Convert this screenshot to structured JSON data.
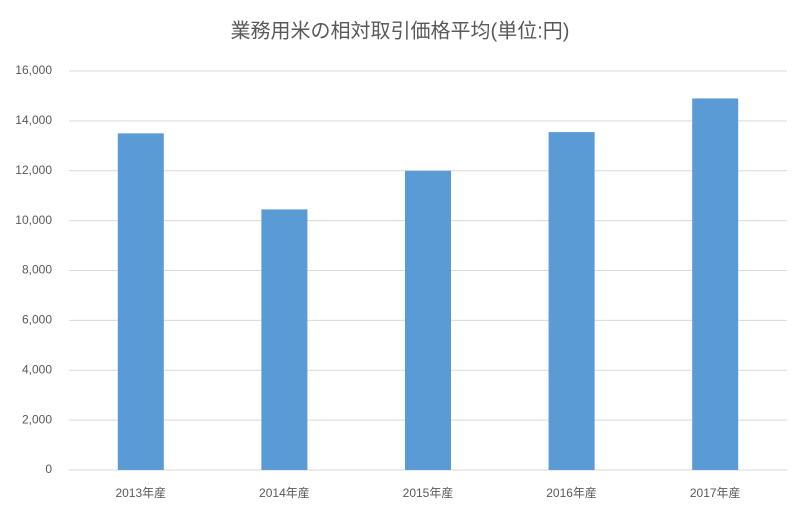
{
  "chart_data": {
    "type": "bar",
    "title": "業務用米の相対取引価格平均(単位:円)",
    "categories": [
      "2013年産",
      "2014年産",
      "2015年産",
      "2016年産",
      "2017年産"
    ],
    "values": [
      13500,
      10450,
      12000,
      13550,
      14900
    ],
    "color": "#5b9bd5",
    "ylim": [
      0,
      16000
    ],
    "yticks": [
      0,
      {
        "value": 2000,
        "label": "2,000"
      },
      {
        "value": 4000,
        "label": "4,000"
      },
      {
        "value": 6000,
        "label": "6,000"
      },
      {
        "value": 8000,
        "label": "8,000"
      },
      {
        "value": 10000,
        "label": "10,000"
      },
      {
        "value": 12000,
        "label": "12,000"
      },
      {
        "value": 14000,
        "label": "14,000"
      },
      {
        "value": 16000,
        "label": "16,000"
      }
    ],
    "grid": true
  }
}
